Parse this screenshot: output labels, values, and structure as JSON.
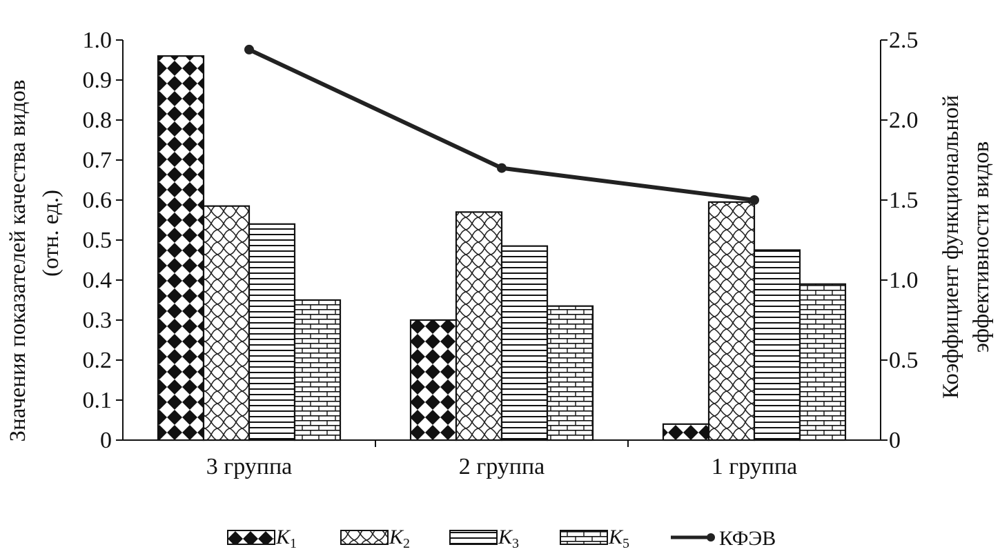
{
  "chart_data": {
    "type": "bar",
    "categories": [
      "3 группа",
      "2 группа",
      "1 группа"
    ],
    "series": [
      {
        "name": "K1",
        "values": [
          0.96,
          0.3,
          0.04
        ],
        "pattern": "diamond-check"
      },
      {
        "name": "K2",
        "values": [
          0.585,
          0.57,
          0.595
        ],
        "pattern": "crosshatch-wave"
      },
      {
        "name": "K3",
        "values": [
          0.54,
          0.485,
          0.475
        ],
        "pattern": "horizontal-lines"
      },
      {
        "name": "K5",
        "values": [
          0.35,
          0.335,
          0.39
        ],
        "pattern": "brick"
      }
    ],
    "line_series": {
      "name": "КФЭВ",
      "values": [
        2.44,
        1.7,
        1.5
      ],
      "axis": "right",
      "color": "#222222"
    },
    "ylabel": "Значения показателей качества видов (отн. ед.)",
    "ylabel_lines": [
      "Значения показателей качества видов",
      "(отн. ед.)"
    ],
    "ylabel_right": "Коэффициент функциональной эффективности видов",
    "ylabel_right_lines": [
      "Коэффициент функциональной",
      "эффективности видов"
    ],
    "ylim": [
      0,
      1.0
    ],
    "ylim_right": [
      0,
      2.5
    ],
    "yticks": [
      "0",
      "0.1",
      "0.2",
      "0.3",
      "0.4",
      "0.5",
      "0.6",
      "0.7",
      "0.8",
      "0.9",
      "1.0"
    ],
    "yticks_right": [
      "0",
      "0.5",
      "1.0",
      "1.5",
      "2.0",
      "2.5"
    ],
    "legend": [
      {
        "label": "K",
        "sub": "1"
      },
      {
        "label": "K",
        "sub": "2"
      },
      {
        "label": "K",
        "sub": "3"
      },
      {
        "label": "K",
        "sub": "5"
      },
      {
        "label": "КФЭВ",
        "sub": ""
      }
    ],
    "legend_position": "bottom",
    "grid": false
  }
}
